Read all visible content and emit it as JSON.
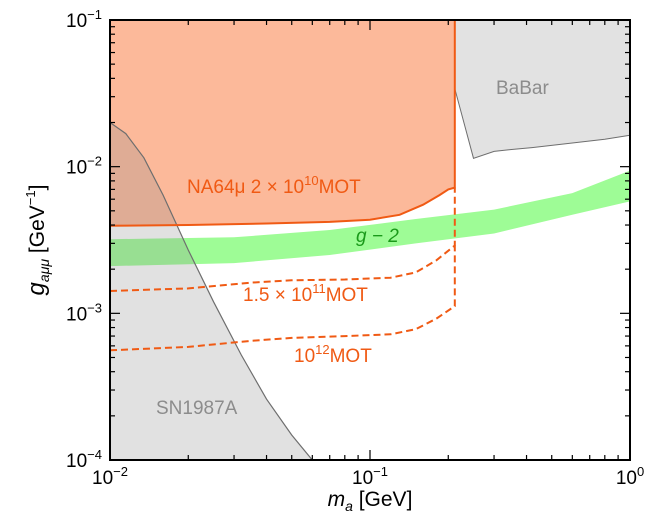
{
  "chart_data": {
    "type": "area",
    "x_scale": "log",
    "y_scale": "log",
    "xlim": [
      0.01,
      1
    ],
    "ylim": [
      0.0001,
      0.1
    ],
    "x_ticks": [
      {
        "value": 0.01,
        "base": "10",
        "exp": "−2"
      },
      {
        "value": 0.1,
        "base": "10",
        "exp": "−1"
      },
      {
        "value": 1,
        "base": "10",
        "exp": "0"
      }
    ],
    "y_ticks": [
      {
        "value": 0.0001,
        "base": "10",
        "exp": "−4"
      },
      {
        "value": 0.001,
        "base": "10",
        "exp": "−3"
      },
      {
        "value": 0.01,
        "base": "10",
        "exp": "−2"
      },
      {
        "value": 0.1,
        "base": "10",
        "exp": "−1"
      }
    ],
    "xlabel": {
      "symbol": "m",
      "sub": "a",
      "unit": "[GeV]"
    },
    "ylabel": {
      "symbol": "g",
      "sub": "aμμ",
      "unit_base": "GeV",
      "unit_exp": "−1"
    },
    "grid": false,
    "colors": {
      "na64_fill": "#fcb99a",
      "na64_line": "#f05a14",
      "projection_line": "#f05a14",
      "g2_band": "#9efc96",
      "g2_text": "#1a9a1a",
      "excluded_gray": "#e2e2e2",
      "excluded_edge": "#6e6e6e",
      "gray_text": "#8c8c8c"
    },
    "regions": {
      "sn1987a": {
        "label": "SN1987A",
        "boundary": [
          [
            0.01,
            0.02
          ],
          [
            0.0115,
            0.0168
          ],
          [
            0.0135,
            0.0115
          ],
          [
            0.016,
            0.0064
          ],
          [
            0.02,
            0.0027
          ],
          [
            0.025,
            0.0012
          ],
          [
            0.032,
            0.00052
          ],
          [
            0.04,
            0.00026
          ],
          [
            0.05,
            0.000148
          ],
          [
            0.06,
            0.0001
          ]
        ]
      },
      "babar": {
        "label": "BaBar",
        "boundary": [
          [
            0.212,
            0.1
          ],
          [
            0.212,
            0.034
          ],
          [
            0.25,
            0.0114
          ],
          [
            0.3,
            0.0127
          ],
          [
            0.35,
            0.0131
          ],
          [
            0.42,
            0.0135
          ],
          [
            0.6,
            0.0145
          ],
          [
            0.8,
            0.0154
          ],
          [
            1.0,
            0.0164
          ]
        ]
      },
      "na64_excluded": {
        "label_prefix": "NA64μ 2 × 10",
        "label_exp": "10",
        "label_suffix": "MOT",
        "lower_boundary": [
          [
            0.01,
            0.00395
          ],
          [
            0.02,
            0.004
          ],
          [
            0.04,
            0.0041
          ],
          [
            0.07,
            0.0042
          ],
          [
            0.1,
            0.00435
          ],
          [
            0.13,
            0.0047
          ],
          [
            0.16,
            0.0055
          ],
          [
            0.185,
            0.0064
          ],
          [
            0.2,
            0.007
          ],
          [
            0.212,
            0.0072
          ]
        ],
        "right_edge": 0.212
      },
      "g2_band": {
        "label": "g − 2",
        "lower": [
          [
            0.01,
            0.0021
          ],
          [
            0.03,
            0.0022
          ],
          [
            0.07,
            0.0025
          ],
          [
            0.15,
            0.003
          ],
          [
            0.3,
            0.0035
          ],
          [
            0.6,
            0.0047
          ],
          [
            1.0,
            0.0058
          ]
        ],
        "upper": [
          [
            0.01,
            0.0032
          ],
          [
            0.03,
            0.0033
          ],
          [
            0.07,
            0.0037
          ],
          [
            0.15,
            0.0044
          ],
          [
            0.3,
            0.0051
          ],
          [
            0.6,
            0.0066
          ],
          [
            1.0,
            0.0094
          ]
        ]
      }
    },
    "projections": [
      {
        "label_prefix": "1.5 × 10",
        "label_exp": "11",
        "label_suffix": "MOT",
        "points": [
          [
            0.01,
            0.00142
          ],
          [
            0.02,
            0.00148
          ],
          [
            0.035,
            0.00162
          ],
          [
            0.05,
            0.00168
          ],
          [
            0.08,
            0.0017
          ],
          [
            0.12,
            0.00175
          ],
          [
            0.15,
            0.0019
          ],
          [
            0.18,
            0.0023
          ],
          [
            0.212,
            0.0029
          ],
          [
            0.212,
            0.0072
          ]
        ]
      },
      {
        "label_prefix": "10",
        "label_exp": "12",
        "label_suffix": "MOT",
        "points": [
          [
            0.01,
            0.00056
          ],
          [
            0.02,
            0.00059
          ],
          [
            0.035,
            0.00065
          ],
          [
            0.05,
            0.00068
          ],
          [
            0.08,
            0.0007
          ],
          [
            0.12,
            0.00072
          ],
          [
            0.15,
            0.00078
          ],
          [
            0.18,
            0.00092
          ],
          [
            0.212,
            0.00112
          ],
          [
            0.212,
            0.0029
          ]
        ]
      }
    ]
  }
}
